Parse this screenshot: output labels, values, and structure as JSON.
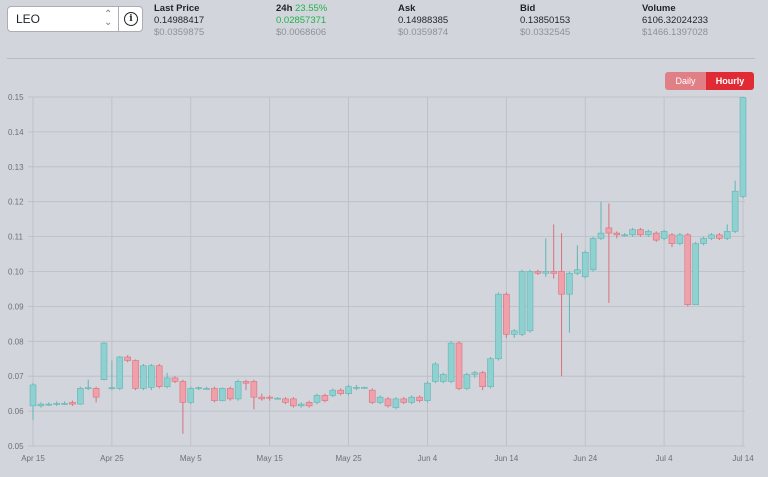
{
  "selector": {
    "value": "LEO",
    "caret": "⌃⌄",
    "info_icon": "info-icon"
  },
  "stats": [
    {
      "label": "Last Price",
      "pct": "",
      "v1": "0.14988417",
      "v1_green": false,
      "v2": "$0.0359875"
    },
    {
      "label": "24h",
      "pct": "23.55%",
      "v1": "0.02857371",
      "v1_green": true,
      "v2": "$0.0068606"
    },
    {
      "label": "Ask",
      "pct": "",
      "v1": "0.14988385",
      "v1_green": false,
      "v2": "$0.0359874"
    },
    {
      "label": "Bid",
      "pct": "",
      "v1": "0.13850153",
      "v1_green": false,
      "v2": "$0.0332545"
    },
    {
      "label": "Volume",
      "pct": "",
      "v1": "6106.32024233",
      "v1_green": false,
      "v2": "$1466.1397028"
    }
  ],
  "toggle": {
    "daily": "Daily",
    "hourly": "Hourly",
    "active": "Hourly"
  },
  "colors": {
    "up": "#8fd1d0",
    "up_stroke": "#5fb5b3",
    "down": "#f0a0aa",
    "down_stroke": "#d9707c",
    "grid": "#b9bdc4",
    "active": "#e02a34",
    "inactive": "#e07f86"
  },
  "chart_data": {
    "type": "candlestick",
    "x_ticks": [
      "Apr 15",
      "Apr 25",
      "May 5",
      "May 15",
      "May 25",
      "Jun 4",
      "Jun 14",
      "Jun 24",
      "Jul 4",
      "Jul 14"
    ],
    "y_ticks": [
      "0.15",
      "0.14",
      "0.13",
      "0.12",
      "0.11",
      "0.10",
      "0.09",
      "0.08",
      "0.07",
      "0.06",
      "0.05"
    ],
    "ylim": [
      0.05,
      0.15
    ],
    "x_range": [
      "Apr 15",
      "Jul 14"
    ],
    "grid": true,
    "candles": [
      {
        "d": "Apr 15",
        "o": 0.0615,
        "c": 0.0675,
        "h": 0.068,
        "l": 0.0575
      },
      {
        "d": "Apr 16",
        "o": 0.0615,
        "c": 0.062,
        "h": 0.0625,
        "l": 0.061
      },
      {
        "d": "Apr 17",
        "o": 0.062,
        "c": 0.062,
        "h": 0.0625,
        "l": 0.0615
      },
      {
        "d": "Apr 18",
        "o": 0.062,
        "c": 0.0622,
        "h": 0.0628,
        "l": 0.0615
      },
      {
        "d": "Apr 19",
        "o": 0.0622,
        "c": 0.0622,
        "h": 0.0628,
        "l": 0.0618
      },
      {
        "d": "Apr 20",
        "o": 0.0625,
        "c": 0.062,
        "h": 0.063,
        "l": 0.0615
      },
      {
        "d": "Apr 21",
        "o": 0.062,
        "c": 0.0665,
        "h": 0.067,
        "l": 0.0618
      },
      {
        "d": "Apr 22",
        "o": 0.0665,
        "c": 0.0667,
        "h": 0.069,
        "l": 0.066
      },
      {
        "d": "Apr 23",
        "o": 0.0665,
        "c": 0.064,
        "h": 0.067,
        "l": 0.0625
      },
      {
        "d": "Apr 24",
        "o": 0.069,
        "c": 0.0795,
        "h": 0.0798,
        "l": 0.0688
      },
      {
        "d": "Apr 25",
        "o": 0.0665,
        "c": 0.0667,
        "h": 0.0745,
        "l": 0.066
      },
      {
        "d": "Apr 26",
        "o": 0.0665,
        "c": 0.0755,
        "h": 0.0758,
        "l": 0.066
      },
      {
        "d": "Apr 27",
        "o": 0.0755,
        "c": 0.0745,
        "h": 0.076,
        "l": 0.074
      },
      {
        "d": "Apr 28",
        "o": 0.0745,
        "c": 0.0665,
        "h": 0.0748,
        "l": 0.066
      },
      {
        "d": "Apr 29",
        "o": 0.0665,
        "c": 0.073,
        "h": 0.0735,
        "l": 0.066
      },
      {
        "d": "Apr 30",
        "o": 0.0668,
        "c": 0.073,
        "h": 0.0735,
        "l": 0.066
      },
      {
        "d": "May 1",
        "o": 0.073,
        "c": 0.067,
        "h": 0.0735,
        "l": 0.0665
      },
      {
        "d": "May 2",
        "o": 0.067,
        "c": 0.0695,
        "h": 0.071,
        "l": 0.0665
      },
      {
        "d": "May 3",
        "o": 0.0695,
        "c": 0.0685,
        "h": 0.07,
        "l": 0.068
      },
      {
        "d": "May 4",
        "o": 0.0685,
        "c": 0.0625,
        "h": 0.069,
        "l": 0.0535
      },
      {
        "d": "May 5",
        "o": 0.0625,
        "c": 0.0665,
        "h": 0.067,
        "l": 0.062
      },
      {
        "d": "May 6",
        "o": 0.0665,
        "c": 0.0667,
        "h": 0.067,
        "l": 0.066
      },
      {
        "d": "May 7",
        "o": 0.0665,
        "c": 0.0665,
        "h": 0.067,
        "l": 0.0662
      },
      {
        "d": "May 8",
        "o": 0.0665,
        "c": 0.063,
        "h": 0.067,
        "l": 0.0625
      },
      {
        "d": "May 9",
        "o": 0.063,
        "c": 0.0665,
        "h": 0.0668,
        "l": 0.0628
      },
      {
        "d": "May 10",
        "o": 0.0665,
        "c": 0.0635,
        "h": 0.067,
        "l": 0.063
      },
      {
        "d": "May 11",
        "o": 0.0635,
        "c": 0.0685,
        "h": 0.069,
        "l": 0.063
      },
      {
        "d": "May 12",
        "o": 0.0685,
        "c": 0.068,
        "h": 0.069,
        "l": 0.066
      },
      {
        "d": "May 13",
        "o": 0.0685,
        "c": 0.064,
        "h": 0.069,
        "l": 0.0605
      },
      {
        "d": "May 14",
        "o": 0.064,
        "c": 0.0635,
        "h": 0.065,
        "l": 0.063
      },
      {
        "d": "May 15",
        "o": 0.064,
        "c": 0.0637,
        "h": 0.0645,
        "l": 0.063
      },
      {
        "d": "May 16",
        "o": 0.0637,
        "c": 0.0637,
        "h": 0.064,
        "l": 0.0633
      },
      {
        "d": "May 17",
        "o": 0.0635,
        "c": 0.0625,
        "h": 0.064,
        "l": 0.062
      },
      {
        "d": "May 18",
        "o": 0.0635,
        "c": 0.0615,
        "h": 0.064,
        "l": 0.061
      },
      {
        "d": "May 19",
        "o": 0.0615,
        "c": 0.062,
        "h": 0.0625,
        "l": 0.061
      },
      {
        "d": "May 20",
        "o": 0.0625,
        "c": 0.0615,
        "h": 0.063,
        "l": 0.061
      },
      {
        "d": "May 21",
        "o": 0.0625,
        "c": 0.0645,
        "h": 0.065,
        "l": 0.062
      },
      {
        "d": "May 22",
        "o": 0.0645,
        "c": 0.063,
        "h": 0.065,
        "l": 0.0625
      },
      {
        "d": "May 23",
        "o": 0.0645,
        "c": 0.066,
        "h": 0.0665,
        "l": 0.064
      },
      {
        "d": "May 24",
        "o": 0.066,
        "c": 0.065,
        "h": 0.0665,
        "l": 0.0645
      },
      {
        "d": "May 25",
        "o": 0.065,
        "c": 0.067,
        "h": 0.0675,
        "l": 0.0645
      },
      {
        "d": "May 26",
        "o": 0.0668,
        "c": 0.0668,
        "h": 0.0675,
        "l": 0.066
      },
      {
        "d": "May 27",
        "o": 0.0668,
        "c": 0.0668,
        "h": 0.067,
        "l": 0.0664
      },
      {
        "d": "May 28",
        "o": 0.066,
        "c": 0.0625,
        "h": 0.0665,
        "l": 0.062
      },
      {
        "d": "May 29",
        "o": 0.0625,
        "c": 0.064,
        "h": 0.0645,
        "l": 0.062
      },
      {
        "d": "May 30",
        "o": 0.0635,
        "c": 0.0615,
        "h": 0.064,
        "l": 0.061
      },
      {
        "d": "May 31",
        "o": 0.061,
        "c": 0.0635,
        "h": 0.064,
        "l": 0.0605
      },
      {
        "d": "Jun 1",
        "o": 0.0635,
        "c": 0.0625,
        "h": 0.064,
        "l": 0.062
      },
      {
        "d": "Jun 2",
        "o": 0.0625,
        "c": 0.064,
        "h": 0.0645,
        "l": 0.062
      },
      {
        "d": "Jun 3",
        "o": 0.064,
        "c": 0.063,
        "h": 0.0645,
        "l": 0.0625
      },
      {
        "d": "Jun 4",
        "o": 0.063,
        "c": 0.068,
        "h": 0.0685,
        "l": 0.0625
      },
      {
        "d": "Jun 5",
        "o": 0.0685,
        "c": 0.0735,
        "h": 0.074,
        "l": 0.068
      },
      {
        "d": "Jun 6",
        "o": 0.0685,
        "c": 0.0705,
        "h": 0.071,
        "l": 0.068
      },
      {
        "d": "Jun 7",
        "o": 0.0685,
        "c": 0.0795,
        "h": 0.08,
        "l": 0.068
      },
      {
        "d": "Jun 8",
        "o": 0.0795,
        "c": 0.0665,
        "h": 0.08,
        "l": 0.066
      },
      {
        "d": "Jun 9",
        "o": 0.0665,
        "c": 0.0705,
        "h": 0.071,
        "l": 0.066
      },
      {
        "d": "Jun 10",
        "o": 0.0705,
        "c": 0.071,
        "h": 0.0715,
        "l": 0.0695
      },
      {
        "d": "Jun 11",
        "o": 0.071,
        "c": 0.067,
        "h": 0.0715,
        "l": 0.066
      },
      {
        "d": "Jun 12",
        "o": 0.067,
        "c": 0.075,
        "h": 0.0755,
        "l": 0.0665
      },
      {
        "d": "Jun 13",
        "o": 0.075,
        "c": 0.0935,
        "h": 0.094,
        "l": 0.0745
      },
      {
        "d": "Jun 14",
        "o": 0.0935,
        "c": 0.082,
        "h": 0.094,
        "l": 0.081
      },
      {
        "d": "Jun 15",
        "o": 0.082,
        "c": 0.083,
        "h": 0.0835,
        "l": 0.081
      },
      {
        "d": "Jun 16",
        "o": 0.082,
        "c": 0.1,
        "h": 0.1005,
        "l": 0.0815
      },
      {
        "d": "Jun 17",
        "o": 0.083,
        "c": 0.1,
        "h": 0.1005,
        "l": 0.0825
      },
      {
        "d": "Jun 18",
        "o": 0.1,
        "c": 0.0995,
        "h": 0.1005,
        "l": 0.099
      },
      {
        "d": "Jun 19",
        "o": 0.0995,
        "c": 0.1,
        "h": 0.1095,
        "l": 0.0985
      },
      {
        "d": "Jun 20",
        "o": 0.1,
        "c": 0.0995,
        "h": 0.1135,
        "l": 0.098
      },
      {
        "d": "Jun 21",
        "o": 0.1,
        "c": 0.0935,
        "h": 0.111,
        "l": 0.07
      },
      {
        "d": "Jun 22",
        "o": 0.0935,
        "c": 0.0995,
        "h": 0.1,
        "l": 0.0825
      },
      {
        "d": "Jun 23",
        "o": 0.0995,
        "c": 0.1005,
        "h": 0.1075,
        "l": 0.099
      },
      {
        "d": "Jun 24",
        "o": 0.0985,
        "c": 0.1055,
        "h": 0.106,
        "l": 0.098
      },
      {
        "d": "Jun 25",
        "o": 0.1005,
        "c": 0.1095,
        "h": 0.11,
        "l": 0.1
      },
      {
        "d": "Jun 26",
        "o": 0.1095,
        "c": 0.111,
        "h": 0.12,
        "l": 0.109
      },
      {
        "d": "Jun 27",
        "o": 0.1125,
        "c": 0.111,
        "h": 0.1195,
        "l": 0.091
      },
      {
        "d": "Jun 28",
        "o": 0.111,
        "c": 0.1105,
        "h": 0.1115,
        "l": 0.1095
      },
      {
        "d": "Jun 29",
        "o": 0.1105,
        "c": 0.1105,
        "h": 0.111,
        "l": 0.11
      },
      {
        "d": "Jun 30",
        "o": 0.1105,
        "c": 0.112,
        "h": 0.1125,
        "l": 0.11
      },
      {
        "d": "Jul 1",
        "o": 0.112,
        "c": 0.1105,
        "h": 0.1125,
        "l": 0.11
      },
      {
        "d": "Jul 2",
        "o": 0.1105,
        "c": 0.1115,
        "h": 0.112,
        "l": 0.11
      },
      {
        "d": "Jul 3",
        "o": 0.111,
        "c": 0.109,
        "h": 0.1115,
        "l": 0.1085
      },
      {
        "d": "Jul 4",
        "o": 0.1095,
        "c": 0.1115,
        "h": 0.112,
        "l": 0.109
      },
      {
        "d": "Jul 5",
        "o": 0.1105,
        "c": 0.108,
        "h": 0.111,
        "l": 0.107
      },
      {
        "d": "Jul 6",
        "o": 0.108,
        "c": 0.1105,
        "h": 0.111,
        "l": 0.1075
      },
      {
        "d": "Jul 7",
        "o": 0.1105,
        "c": 0.0905,
        "h": 0.111,
        "l": 0.09
      },
      {
        "d": "Jul 8",
        "o": 0.0905,
        "c": 0.108,
        "h": 0.1085,
        "l": 0.0905
      },
      {
        "d": "Jul 9",
        "o": 0.108,
        "c": 0.1095,
        "h": 0.11,
        "l": 0.1075
      },
      {
        "d": "Jul 10",
        "o": 0.1095,
        "c": 0.1105,
        "h": 0.111,
        "l": 0.109
      },
      {
        "d": "Jul 11",
        "o": 0.1105,
        "c": 0.1095,
        "h": 0.111,
        "l": 0.109
      },
      {
        "d": "Jul 12",
        "o": 0.1095,
        "c": 0.1115,
        "h": 0.1135,
        "l": 0.109
      },
      {
        "d": "Jul 13",
        "o": 0.1115,
        "c": 0.123,
        "h": 0.126,
        "l": 0.111
      },
      {
        "d": "Jul 14",
        "o": 0.1215,
        "c": 0.1498,
        "h": 0.15,
        "l": 0.121
      }
    ]
  }
}
